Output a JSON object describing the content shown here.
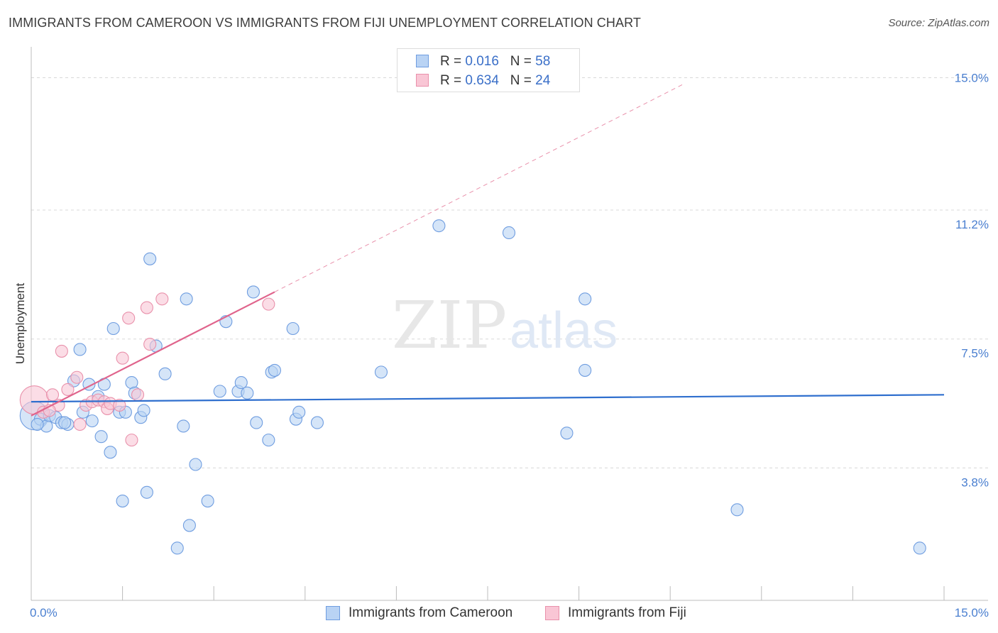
{
  "title": "IMMIGRANTS FROM CAMEROON VS IMMIGRANTS FROM FIJI UNEMPLOYMENT CORRELATION CHART",
  "source": "Source: ZipAtlas.com",
  "watermark": {
    "zip": "ZIP",
    "atlas": "atlas"
  },
  "legend": {
    "r_label": "R =",
    "n_label": "N =",
    "series": [
      {
        "name": "Immigrants from Cameroon",
        "r": "0.016",
        "n": "58",
        "fill": "#b9d3f4",
        "stroke": "#6f9de0"
      },
      {
        "name": "Immigrants from Fiji",
        "r": "0.634",
        "n": "24",
        "fill": "#f9c6d5",
        "stroke": "#e991ab"
      }
    ]
  },
  "chart_data": {
    "type": "scatter",
    "title": "IMMIGRANTS FROM CAMEROON VS IMMIGRANTS FROM FIJI UNEMPLOYMENT CORRELATION CHART",
    "xlabel": "",
    "ylabel": "Unemployment",
    "xlim": [
      0,
      15
    ],
    "ylim": [
      0,
      15.6
    ],
    "x_tick_labels": [
      "0.0%",
      "15.0%"
    ],
    "y_ticks": [
      3.8,
      7.5,
      11.2,
      15.0
    ],
    "y_tick_labels": [
      "3.8%",
      "7.5%",
      "11.2%",
      "15.0%"
    ],
    "series": [
      {
        "name": "Immigrants from Cameroon",
        "color": "#6f9de0",
        "fill": "#b9d3f4",
        "trend": {
          "x1": 0.0,
          "y1": 5.7,
          "x2": 15.0,
          "y2": 5.9,
          "color": "#2f6fce"
        },
        "points": [
          {
            "x": 0.05,
            "y": 5.3,
            "big": true
          },
          {
            "x": 0.15,
            "y": 5.2
          },
          {
            "x": 0.25,
            "y": 5.0
          },
          {
            "x": 0.3,
            "y": 5.3
          },
          {
            "x": 0.4,
            "y": 5.25
          },
          {
            "x": 0.5,
            "y": 5.1
          },
          {
            "x": 0.6,
            "y": 5.05
          },
          {
            "x": 0.7,
            "y": 6.3
          },
          {
            "x": 0.8,
            "y": 7.2
          },
          {
            "x": 0.85,
            "y": 5.4
          },
          {
            "x": 0.95,
            "y": 6.2
          },
          {
            "x": 1.0,
            "y": 5.15
          },
          {
            "x": 1.1,
            "y": 5.85
          },
          {
            "x": 1.15,
            "y": 4.7
          },
          {
            "x": 1.2,
            "y": 6.2
          },
          {
            "x": 1.3,
            "y": 4.25
          },
          {
            "x": 1.35,
            "y": 7.8
          },
          {
            "x": 1.45,
            "y": 5.4
          },
          {
            "x": 1.5,
            "y": 2.85
          },
          {
            "x": 1.55,
            "y": 5.4
          },
          {
            "x": 1.65,
            "y": 6.25
          },
          {
            "x": 1.7,
            "y": 5.95
          },
          {
            "x": 1.8,
            "y": 5.25
          },
          {
            "x": 1.85,
            "y": 5.45
          },
          {
            "x": 1.9,
            "y": 3.1
          },
          {
            "x": 1.95,
            "y": 9.8
          },
          {
            "x": 2.05,
            "y": 7.3
          },
          {
            "x": 2.2,
            "y": 6.5
          },
          {
            "x": 2.4,
            "y": 1.5
          },
          {
            "x": 2.5,
            "y": 5.0
          },
          {
            "x": 2.55,
            "y": 8.65
          },
          {
            "x": 2.6,
            "y": 2.15
          },
          {
            "x": 2.7,
            "y": 3.9
          },
          {
            "x": 2.9,
            "y": 2.85
          },
          {
            "x": 3.1,
            "y": 6.0
          },
          {
            "x": 3.2,
            "y": 8.0
          },
          {
            "x": 3.4,
            "y": 6.0
          },
          {
            "x": 3.45,
            "y": 6.25
          },
          {
            "x": 3.55,
            "y": 5.95
          },
          {
            "x": 3.65,
            "y": 8.85
          },
          {
            "x": 3.7,
            "y": 5.1
          },
          {
            "x": 3.9,
            "y": 4.6
          },
          {
            "x": 3.95,
            "y": 6.55
          },
          {
            "x": 4.0,
            "y": 6.6
          },
          {
            "x": 4.3,
            "y": 7.8
          },
          {
            "x": 4.35,
            "y": 5.2
          },
          {
            "x": 4.4,
            "y": 5.4
          },
          {
            "x": 4.7,
            "y": 5.1
          },
          {
            "x": 5.75,
            "y": 6.55
          },
          {
            "x": 6.7,
            "y": 10.75
          },
          {
            "x": 7.85,
            "y": 10.55
          },
          {
            "x": 8.8,
            "y": 4.8
          },
          {
            "x": 9.1,
            "y": 6.6
          },
          {
            "x": 9.1,
            "y": 8.65
          },
          {
            "x": 11.6,
            "y": 2.6
          },
          {
            "x": 14.6,
            "y": 1.5
          },
          {
            "x": 0.1,
            "y": 5.05
          },
          {
            "x": 0.55,
            "y": 5.1
          }
        ]
      },
      {
        "name": "Immigrants from Fiji",
        "color": "#e991ab",
        "fill": "#f9c6d5",
        "trend": {
          "x1": 0.0,
          "y1": 5.3,
          "x2": 4.0,
          "y2": 8.85,
          "color": "#e0648c",
          "extend_x2": 10.7,
          "extend_y2": 14.8
        },
        "points": [
          {
            "x": 0.05,
            "y": 5.75,
            "big": true
          },
          {
            "x": 0.2,
            "y": 5.4
          },
          {
            "x": 0.35,
            "y": 5.9
          },
          {
            "x": 0.45,
            "y": 5.6
          },
          {
            "x": 0.5,
            "y": 7.15
          },
          {
            "x": 0.6,
            "y": 6.05
          },
          {
            "x": 0.75,
            "y": 6.4
          },
          {
            "x": 0.8,
            "y": 5.05
          },
          {
            "x": 0.9,
            "y": 5.6
          },
          {
            "x": 1.0,
            "y": 5.7
          },
          {
            "x": 1.1,
            "y": 5.75
          },
          {
            "x": 1.2,
            "y": 5.7
          },
          {
            "x": 1.25,
            "y": 5.5
          },
          {
            "x": 1.3,
            "y": 5.65
          },
          {
            "x": 1.45,
            "y": 5.6
          },
          {
            "x": 1.5,
            "y": 6.95
          },
          {
            "x": 1.6,
            "y": 8.1
          },
          {
            "x": 1.65,
            "y": 4.6
          },
          {
            "x": 1.75,
            "y": 5.9
          },
          {
            "x": 1.9,
            "y": 8.4
          },
          {
            "x": 1.95,
            "y": 7.35
          },
          {
            "x": 2.15,
            "y": 8.65
          },
          {
            "x": 3.9,
            "y": 8.5
          },
          {
            "x": 0.3,
            "y": 5.45
          }
        ]
      }
    ]
  }
}
